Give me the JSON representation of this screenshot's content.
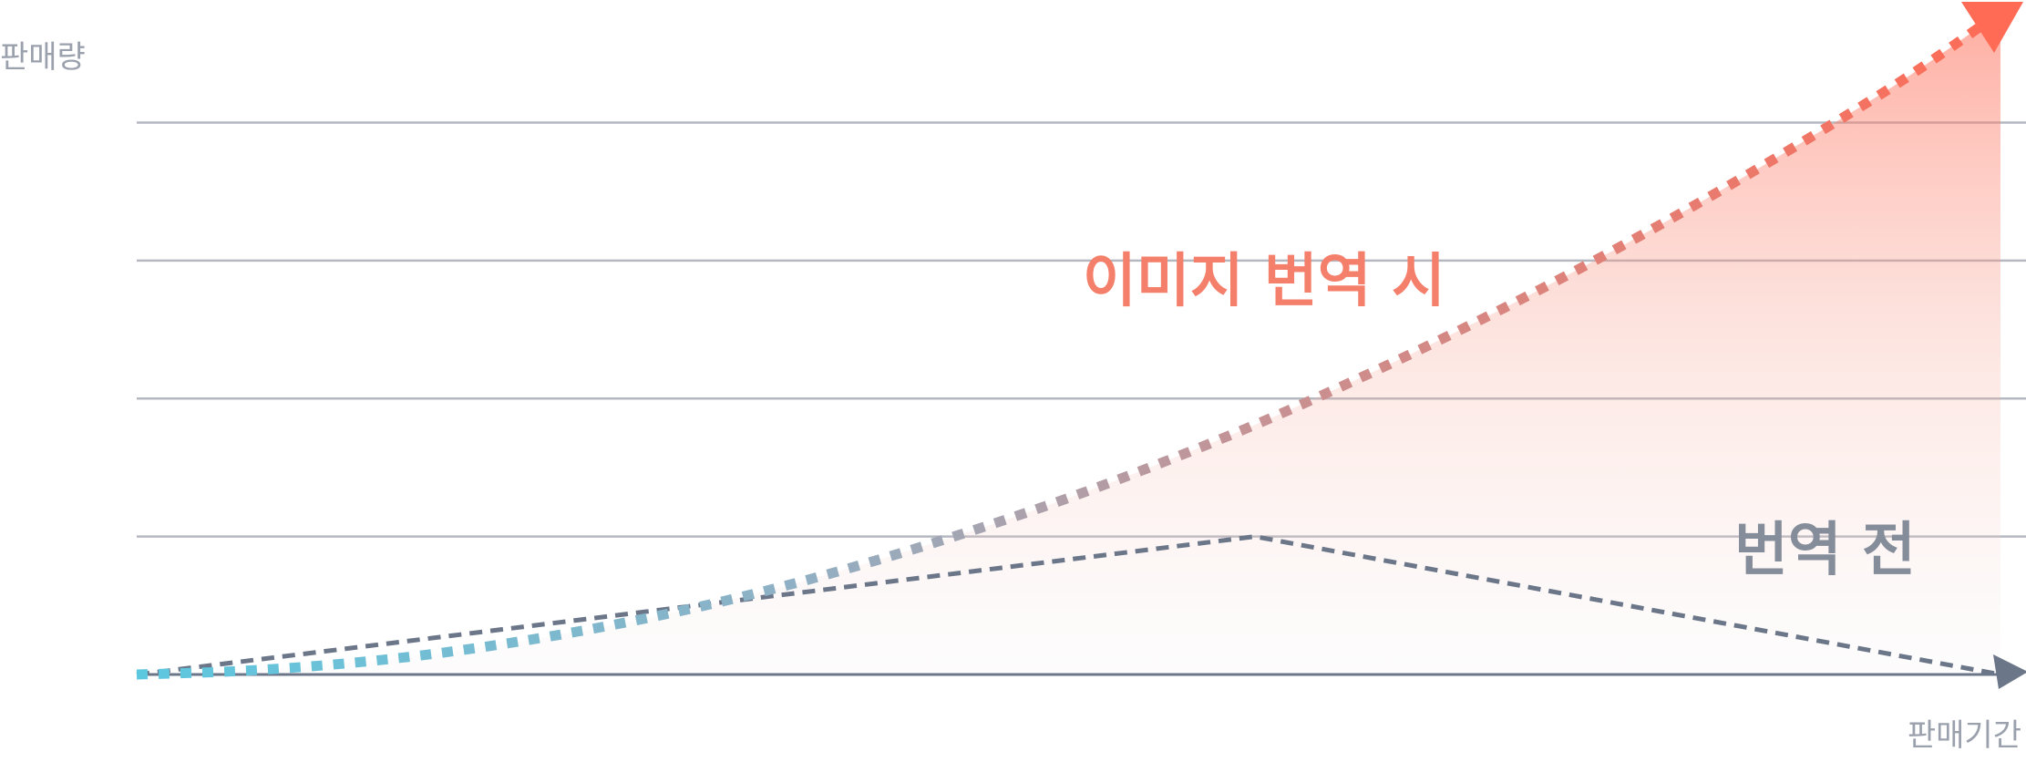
{
  "chart_data": {
    "type": "line",
    "title": "",
    "xlabel": "판매기간",
    "ylabel": "판매량",
    "xlim": [
      0,
      10
    ],
    "ylim": [
      0,
      4.4
    ],
    "gridlines_y": [
      1,
      2,
      3,
      4
    ],
    "grid": true,
    "series": [
      {
        "name": "이미지 번역 시",
        "style": "dotted-gradient",
        "color_start": "#5cc8e0",
        "color_end": "#ff6b55",
        "x": [
          0,
          0.5,
          1,
          1.5,
          2,
          2.5,
          3,
          3.5,
          4,
          4.5,
          5,
          5.5,
          6,
          6.5,
          7,
          7.5,
          8,
          8.5,
          9,
          9.5,
          10
        ],
        "values": [
          0,
          0.022,
          0.066,
          0.134,
          0.228,
          0.345,
          0.485,
          0.65,
          0.84,
          1.05,
          1.28,
          1.535,
          1.81,
          2.11,
          2.43,
          2.77,
          3.13,
          3.51,
          3.91,
          4.33,
          4.8
        ]
      },
      {
        "name": "번역 전",
        "style": "dashed",
        "color": "#6b7689",
        "x": [
          0,
          6,
          10
        ],
        "values": [
          0,
          1,
          0
        ]
      }
    ],
    "legend": "inline"
  },
  "colors": {
    "axis": "#6b7689",
    "grid": "#b4b8c0",
    "translated_label": "#f4806c",
    "before_label": "#858d9a",
    "area_top": "#ff6b55"
  }
}
